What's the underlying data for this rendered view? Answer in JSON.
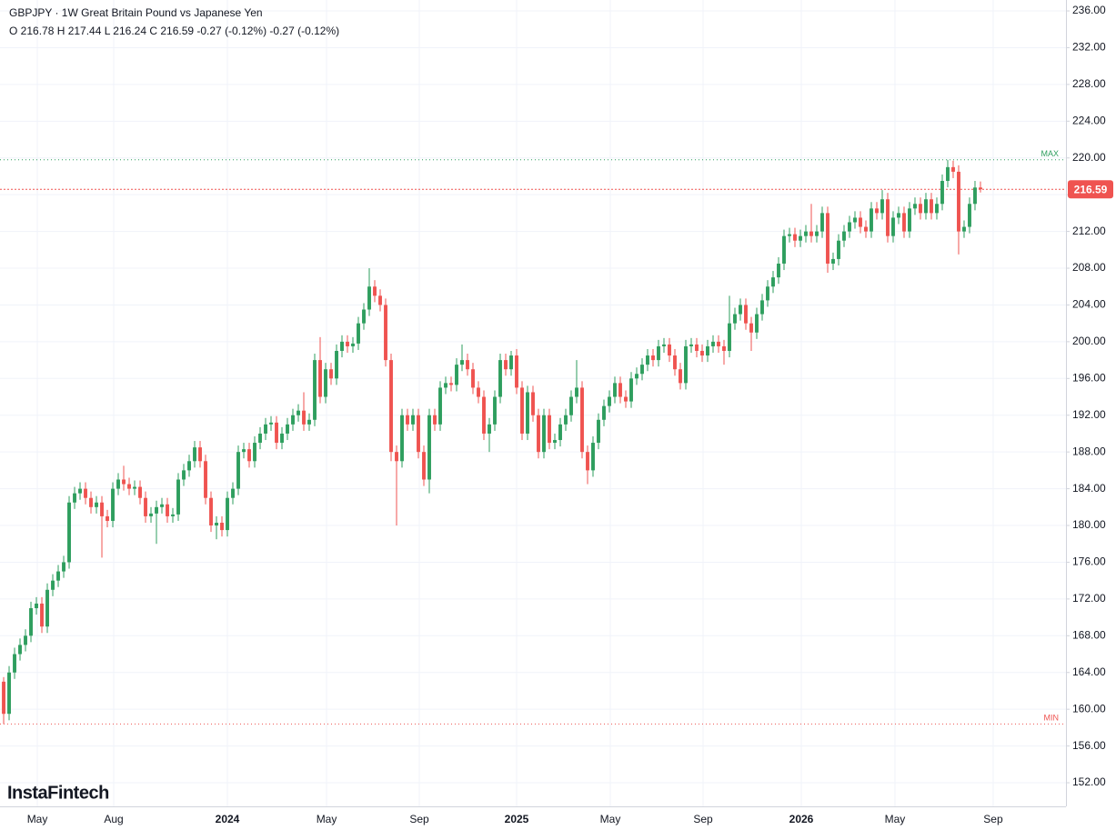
{
  "chart_data": {
    "type": "candlestick",
    "title": "GBPJPY · 1W Great Britain Pound vs Japanese Yen",
    "subtitle": "O 216.78 H 217.44 L 216.24 C 216.59 -0.27 (-0.12%) -0.27 (-0.12%)",
    "watermark": "InstaFintech",
    "up_color": "#2e9e5e",
    "down_color": "#ef5350",
    "grid": true,
    "open": [
      163,
      159.5,
      164,
      166,
      167,
      168,
      171,
      171.5,
      169,
      173,
      174,
      175,
      176,
      182.5,
      183.5,
      184,
      183,
      182,
      182.5,
      181,
      180.5,
      184,
      185,
      184.5,
      184,
      184.2,
      183,
      181,
      181.3,
      182,
      182.3,
      181,
      181.2,
      185,
      186,
      187,
      188.5,
      187,
      183,
      180,
      180.3,
      179.5,
      183,
      184,
      188,
      188.3,
      187,
      189,
      190,
      191,
      191.2,
      189,
      190,
      191,
      192,
      192.5,
      191,
      191.5,
      198,
      194,
      197,
      196,
      199,
      200,
      199.5,
      199.8,
      202,
      203.5,
      206,
      205,
      204,
      198,
      188,
      187,
      192,
      191,
      192,
      188,
      185,
      192,
      191,
      195,
      195.5,
      195.3,
      197.5,
      198,
      197,
      195,
      194,
      190,
      191,
      194,
      198,
      197,
      198.5,
      195,
      190,
      194.5,
      192,
      188,
      192,
      189,
      189.3,
      191,
      192,
      194,
      195,
      188,
      186,
      189,
      191.5,
      193,
      194,
      195.5,
      194,
      193.5,
      196,
      196.5,
      197.5,
      198.5,
      198,
      199.5,
      199.7,
      198.5,
      197,
      195.5,
      199.5,
      199.7,
      199,
      198.5,
      199.5,
      200,
      199.5,
      199,
      202,
      203,
      204,
      202,
      201,
      203,
      204.5,
      206,
      207,
      208.5,
      211.5,
      211.7,
      211,
      211.5,
      212,
      211.5,
      212,
      214,
      208.5,
      209,
      211,
      212,
      213,
      213.5,
      212.5,
      212,
      214.5,
      214,
      215.5,
      211.5,
      213.5,
      214,
      212,
      214.5,
      215,
      214,
      215.5,
      214,
      215,
      217.5,
      219,
      218.5,
      212,
      212.5,
      215,
      216.78
    ],
    "close": [
      159.5,
      164,
      166,
      167,
      168,
      171,
      171.5,
      169,
      173,
      174,
      175,
      176,
      182.5,
      183.5,
      184,
      183,
      182,
      182.5,
      181,
      180.5,
      184,
      185,
      184.5,
      184,
      184.2,
      183,
      181,
      181.3,
      182,
      182.3,
      181,
      181.2,
      185,
      186,
      187,
      188.5,
      187,
      183,
      180,
      180.3,
      179.5,
      183,
      184,
      188,
      188.3,
      187,
      189,
      190,
      191,
      191.2,
      189,
      190,
      191,
      192,
      192.5,
      191,
      191.5,
      198,
      194,
      197,
      196,
      199,
      200,
      199.5,
      199.8,
      202,
      203.5,
      206,
      205,
      204,
      198,
      188,
      187,
      192,
      191,
      192,
      188,
      185,
      192,
      191,
      195,
      195.5,
      195.3,
      197.5,
      198,
      197,
      195,
      194,
      190,
      191,
      194,
      198,
      197,
      198.5,
      195,
      190,
      194.5,
      192,
      188,
      192,
      189,
      189.3,
      191,
      192,
      194,
      195,
      188,
      186,
      189,
      191.5,
      193,
      194,
      195.5,
      194,
      193.5,
      196,
      196.5,
      197.5,
      198.5,
      198,
      199.5,
      199.7,
      198.5,
      197,
      195.5,
      199.5,
      199.7,
      199,
      198.5,
      199.5,
      200,
      199.5,
      199,
      202,
      203,
      204,
      202,
      201,
      203,
      204.5,
      206,
      207,
      208.5,
      211.5,
      211.7,
      211,
      211.5,
      212,
      211.5,
      212,
      214,
      208.5,
      209,
      211,
      212,
      213,
      213.5,
      212.5,
      212,
      214.5,
      214,
      215.5,
      211.5,
      213.5,
      214,
      212,
      214.5,
      215,
      214,
      215.5,
      214,
      215,
      217.5,
      219,
      218.5,
      212,
      212.5,
      215,
      216.78,
      216.59
    ],
    "high": [
      163.5,
      164.7,
      166.7,
      167.7,
      168.7,
      171.7,
      172.2,
      172.2,
      173.7,
      174.7,
      175.7,
      176.7,
      183.2,
      184.2,
      184.7,
      184.7,
      183.7,
      183.2,
      183.2,
      181.7,
      184.7,
      185.7,
      186.5,
      185.2,
      184.9,
      184.9,
      183.7,
      182,
      182.7,
      183,
      183,
      181.9,
      185.7,
      186.7,
      187.7,
      189.2,
      189.2,
      187.7,
      183.7,
      181,
      181,
      183.7,
      184.7,
      188.7,
      189,
      189,
      189.7,
      190.7,
      191.7,
      191.9,
      191.9,
      190.7,
      191.7,
      192.7,
      193.2,
      194.5,
      192.2,
      198.7,
      200.5,
      197.7,
      197.7,
      199.7,
      200.7,
      200.7,
      200.5,
      202.7,
      204.2,
      208,
      206.7,
      205.7,
      204.7,
      198.7,
      188.7,
      192.7,
      192.7,
      192.7,
      192.7,
      188.7,
      192.7,
      192.7,
      195.7,
      196.2,
      196.2,
      198.2,
      199.7,
      198.7,
      197.7,
      195.7,
      194.7,
      191.7,
      194.7,
      198.7,
      198.7,
      199,
      199.2,
      195.7,
      195.2,
      195.2,
      192.7,
      192.7,
      192.7,
      190,
      191.7,
      192.7,
      194.7,
      198,
      195.7,
      188.7,
      189.7,
      192.2,
      193.7,
      194.7,
      196.2,
      196.2,
      194.7,
      196.7,
      197.2,
      198.2,
      199.2,
      199.2,
      200.2,
      200.4,
      200.4,
      199.2,
      197.7,
      200.2,
      200.4,
      200.4,
      199.7,
      200.2,
      200.7,
      200.7,
      200.2,
      205,
      203.7,
      204.7,
      204.7,
      202.7,
      203.7,
      205.2,
      206.7,
      207.7,
      209.2,
      212.2,
      212.4,
      212.4,
      212.2,
      212.7,
      215,
      212.7,
      214.7,
      214.7,
      209.7,
      211.7,
      212.7,
      213.7,
      214.2,
      214.2,
      213.2,
      215.2,
      215.2,
      216.5,
      216.2,
      214.2,
      214.7,
      214.7,
      215.2,
      215.7,
      215.7,
      216.2,
      216.2,
      215.7,
      218.2,
      219.8,
      219.7,
      219.2,
      213.2,
      215.7,
      217.5,
      217.44
    ],
    "low": [
      158.4,
      158.8,
      163.3,
      165.3,
      166.3,
      167.3,
      170.3,
      168.3,
      168.3,
      172.3,
      173.3,
      174.3,
      175.3,
      181.8,
      182.8,
      182.3,
      181.3,
      181.3,
      176.5,
      179.8,
      179.8,
      183.3,
      183.8,
      183.3,
      183.3,
      182.3,
      180.3,
      180.3,
      178,
      181.3,
      180.3,
      180.3,
      180.5,
      184.3,
      185.3,
      186.3,
      186.3,
      182.3,
      179.3,
      178.5,
      178.8,
      178.8,
      182.3,
      183.3,
      187.3,
      186.3,
      186.3,
      188.3,
      189.3,
      190.3,
      188.3,
      188.3,
      189.3,
      190.3,
      191.3,
      190.3,
      190.3,
      190.8,
      193.3,
      193.3,
      195.3,
      195.3,
      198.3,
      198.8,
      198.8,
      199.1,
      201.3,
      202.8,
      204.3,
      203.3,
      197.3,
      187,
      180,
      186.3,
      190.3,
      190.3,
      187.3,
      184.3,
      183.5,
      190.3,
      190.3,
      194.3,
      194.6,
      194.6,
      196.8,
      196.3,
      194.3,
      193.3,
      189.3,
      188,
      190.3,
      193.3,
      196.3,
      196.3,
      194.3,
      189.3,
      189.3,
      191.3,
      187.3,
      187.3,
      188.3,
      188.3,
      188.6,
      190.3,
      191.3,
      193.3,
      187.3,
      184.5,
      185.3,
      188.3,
      190.8,
      192.3,
      193.3,
      193.3,
      192.8,
      192.8,
      195.3,
      195.8,
      196.8,
      197.3,
      197.3,
      198.8,
      197.8,
      196.3,
      194.8,
      194.8,
      198.8,
      198.3,
      197.8,
      197.8,
      198.8,
      198.8,
      197.5,
      198.3,
      201.3,
      202.3,
      201.3,
      199,
      200.3,
      202.3,
      203.8,
      205.3,
      206.3,
      207.8,
      210.8,
      210.3,
      210.3,
      210.8,
      210.8,
      210.8,
      211.3,
      207.5,
      207.8,
      208.3,
      210.3,
      211.3,
      212.3,
      211.8,
      211.3,
      211.3,
      213.3,
      213.3,
      210.8,
      210.8,
      212.8,
      211.3,
      211.3,
      213.8,
      213.3,
      213.3,
      213.3,
      213.3,
      214.3,
      216.8,
      217.8,
      209.5,
      211.3,
      211.8,
      214.3,
      216.24
    ],
    "xlim": [
      -0.67,
      194.67
    ],
    "xticks": [
      {
        "value": 6.17,
        "label": "May"
      },
      {
        "value": 20.17,
        "label": "Aug"
      },
      {
        "value": 41,
        "label": "2024"
      },
      {
        "value": 59.17,
        "label": "May"
      },
      {
        "value": 76.17,
        "label": "Sep"
      },
      {
        "value": 94,
        "label": "2025"
      },
      {
        "value": 111.17,
        "label": "May"
      },
      {
        "value": 128.17,
        "label": "Sep"
      },
      {
        "value": 146.17,
        "label": "2026"
      },
      {
        "value": 163.33,
        "label": "May"
      },
      {
        "value": 181.33,
        "label": "Sep"
      }
    ],
    "ylim": [
      149.43,
      237.19
    ],
    "yticks": [
      {
        "value": 236,
        "label": "236.00"
      },
      {
        "value": 232,
        "label": "232.00"
      },
      {
        "value": 228,
        "label": "228.00"
      },
      {
        "value": 224,
        "label": "224.00"
      },
      {
        "value": 220,
        "label": "220.00"
      },
      {
        "value": 216,
        "label": "216.00"
      },
      {
        "value": 212,
        "label": "212.00"
      },
      {
        "value": 208,
        "label": "208.00"
      },
      {
        "value": 204,
        "label": "204.00"
      },
      {
        "value": 200,
        "label": "200.00"
      },
      {
        "value": 196,
        "label": "196.00"
      },
      {
        "value": 192,
        "label": "192.00"
      },
      {
        "value": 188,
        "label": "188.00"
      },
      {
        "value": 184,
        "label": "184.00"
      },
      {
        "value": 180,
        "label": "180.00"
      },
      {
        "value": 176,
        "label": "176.00"
      },
      {
        "value": 172,
        "label": "172.00"
      },
      {
        "value": 168,
        "label": "168.00"
      },
      {
        "value": 164,
        "label": "164.00"
      },
      {
        "value": 160,
        "label": "160.00"
      },
      {
        "value": 156,
        "label": "156.00"
      },
      {
        "value": 152,
        "label": "152.00"
      }
    ],
    "max_line": {
      "value": 219.8,
      "label": "MAX"
    },
    "min_line": {
      "value": 158.4,
      "label": "MIN"
    },
    "last_price": 216.59
  }
}
